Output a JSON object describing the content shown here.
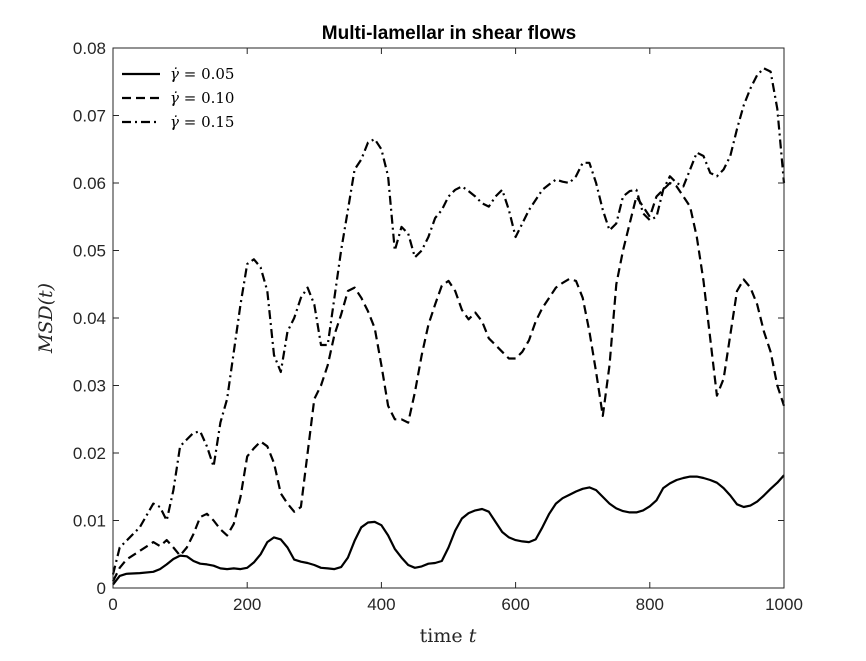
{
  "chart_data": {
    "type": "line",
    "title": "Multi-lamellar in shear flows",
    "xlabel": "time t",
    "ylabel": "MSD(t)",
    "xlim": [
      0,
      1000
    ],
    "ylim": [
      0,
      0.08
    ],
    "xticks": [
      0,
      200,
      400,
      600,
      800,
      1000
    ],
    "yticks": [
      0,
      0.01,
      0.02,
      0.03,
      0.04,
      0.05,
      0.06,
      0.07,
      0.08
    ],
    "xtick_labels": [
      "0",
      "200",
      "400",
      "600",
      "800",
      "1000"
    ],
    "ytick_labels": [
      "0",
      "0.01",
      "0.02",
      "0.03",
      "0.04",
      "0.05",
      "0.06",
      "0.07",
      "0.08"
    ],
    "legend_position": "top-left",
    "grid": false,
    "x": [
      0,
      10,
      20,
      40,
      60,
      70,
      80,
      90,
      100,
      110,
      120,
      130,
      140,
      150,
      160,
      170,
      180,
      190,
      200,
      210,
      220,
      230,
      240,
      250,
      260,
      270,
      280,
      290,
      300,
      310,
      320,
      330,
      340,
      350,
      360,
      370,
      380,
      390,
      400,
      410,
      420,
      430,
      440,
      450,
      460,
      470,
      480,
      490,
      500,
      510,
      520,
      530,
      540,
      550,
      560,
      570,
      580,
      590,
      600,
      610,
      620,
      630,
      640,
      650,
      660,
      670,
      680,
      690,
      700,
      710,
      720,
      730,
      740,
      750,
      760,
      770,
      780,
      790,
      800,
      810,
      820,
      830,
      840,
      850,
      860,
      870,
      880,
      890,
      900,
      910,
      920,
      930,
      940,
      950,
      960,
      970,
      980,
      990,
      1000
    ],
    "series": [
      {
        "name": "γ̇ = 0.05",
        "style": "solid",
        "values": [
          0.0005,
          0.0018,
          0.0021,
          0.0022,
          0.0024,
          0.0028,
          0.0035,
          0.0043,
          0.0048,
          0.0047,
          0.004,
          0.0036,
          0.0035,
          0.0033,
          0.0029,
          0.0028,
          0.0029,
          0.0028,
          0.003,
          0.0038,
          0.005,
          0.0068,
          0.0075,
          0.0072,
          0.006,
          0.0042,
          0.0039,
          0.0037,
          0.0034,
          0.003,
          0.0029,
          0.0028,
          0.0031,
          0.0045,
          0.007,
          0.009,
          0.0097,
          0.0098,
          0.0093,
          0.0078,
          0.0058,
          0.0045,
          0.0034,
          0.003,
          0.0032,
          0.0036,
          0.0037,
          0.004,
          0.006,
          0.0085,
          0.0103,
          0.0111,
          0.0115,
          0.0117,
          0.0113,
          0.0098,
          0.0083,
          0.0075,
          0.0071,
          0.0069,
          0.0068,
          0.0072,
          0.009,
          0.011,
          0.0125,
          0.0133,
          0.0138,
          0.0143,
          0.0147,
          0.0149,
          0.0145,
          0.0135,
          0.0125,
          0.0118,
          0.0114,
          0.0112,
          0.0112,
          0.0115,
          0.0121,
          0.013,
          0.0148,
          0.0155,
          0.016,
          0.0163,
          0.0165,
          0.0165,
          0.0163,
          0.016,
          0.0156,
          0.0148,
          0.0137,
          0.0124,
          0.012,
          0.0122,
          0.0128,
          0.0137,
          0.0147,
          0.0156,
          0.0167
        ]
      },
      {
        "name": "γ̇ = 0.10",
        "style": "dashed",
        "values": [
          0.001,
          0.003,
          0.0042,
          0.0055,
          0.0068,
          0.0062,
          0.0071,
          0.006,
          0.0048,
          0.006,
          0.008,
          0.0105,
          0.011,
          0.01,
          0.0087,
          0.0078,
          0.0095,
          0.0135,
          0.0195,
          0.0207,
          0.0217,
          0.021,
          0.0185,
          0.014,
          0.0125,
          0.0113,
          0.012,
          0.02,
          0.028,
          0.03,
          0.033,
          0.0375,
          0.0405,
          0.044,
          0.0445,
          0.043,
          0.041,
          0.0385,
          0.033,
          0.027,
          0.025,
          0.025,
          0.0245,
          0.029,
          0.0345,
          0.039,
          0.042,
          0.0448,
          0.0455,
          0.044,
          0.0412,
          0.0398,
          0.0408,
          0.0395,
          0.037,
          0.036,
          0.035,
          0.034,
          0.034,
          0.035,
          0.0367,
          0.0395,
          0.0415,
          0.043,
          0.0445,
          0.0452,
          0.0458,
          0.0455,
          0.043,
          0.038,
          0.032,
          0.0255,
          0.033,
          0.045,
          0.05,
          0.054,
          0.058,
          0.0565,
          0.055,
          0.058,
          0.059,
          0.06,
          0.0595,
          0.058,
          0.0565,
          0.052,
          0.0455,
          0.037,
          0.0285,
          0.031,
          0.0375,
          0.044,
          0.0457,
          0.0445,
          0.042,
          0.038,
          0.035,
          0.03,
          0.027
        ]
      },
      {
        "name": "γ̇ = 0.15",
        "style": "dashdot",
        "values": [
          0.002,
          0.006,
          0.007,
          0.009,
          0.0125,
          0.012,
          0.01,
          0.0145,
          0.021,
          0.022,
          0.023,
          0.0232,
          0.021,
          0.018,
          0.0245,
          0.028,
          0.035,
          0.042,
          0.048,
          0.0487,
          0.0475,
          0.044,
          0.0345,
          0.032,
          0.038,
          0.04,
          0.043,
          0.0445,
          0.042,
          0.036,
          0.036,
          0.043,
          0.05,
          0.056,
          0.062,
          0.0635,
          0.066,
          0.0665,
          0.065,
          0.061,
          0.05,
          0.0535,
          0.0525,
          0.049,
          0.05,
          0.052,
          0.0548,
          0.056,
          0.058,
          0.059,
          0.0595,
          0.0588,
          0.058,
          0.057,
          0.0565,
          0.058,
          0.059,
          0.056,
          0.052,
          0.054,
          0.056,
          0.0575,
          0.059,
          0.0598,
          0.0605,
          0.0602,
          0.06,
          0.061,
          0.063,
          0.063,
          0.06,
          0.056,
          0.053,
          0.054,
          0.058,
          0.0588,
          0.059,
          0.0555,
          0.0545,
          0.055,
          0.059,
          0.061,
          0.06,
          0.0595,
          0.062,
          0.0645,
          0.064,
          0.0615,
          0.061,
          0.062,
          0.064,
          0.068,
          0.0715,
          0.074,
          0.076,
          0.077,
          0.0765,
          0.071,
          0.06
        ]
      }
    ]
  }
}
